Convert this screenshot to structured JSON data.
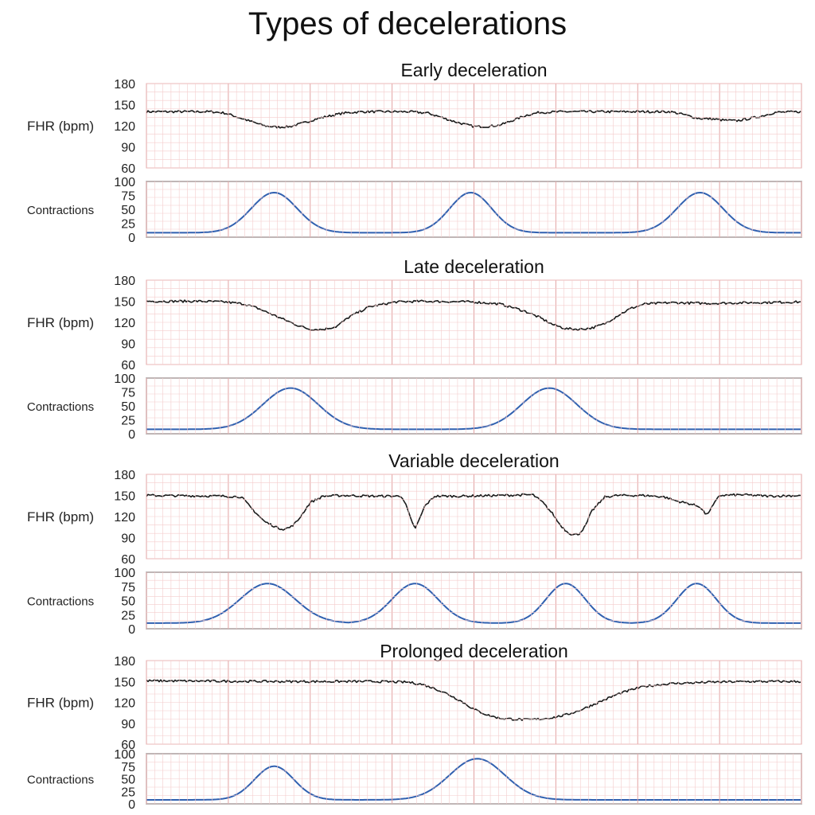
{
  "title": "Types of decelerations",
  "colors": {
    "fhr_line": "#1a1a1a",
    "contraction_line": "#3060b0",
    "grid_minor": "#f4cccc",
    "grid_major": "#e2a3a3",
    "frame": "#555555"
  },
  "chart_data": [
    {
      "type": "line",
      "title": "Early deceleration",
      "fhr": {
        "ylabel": "FHR (bpm)",
        "ticks": [
          180,
          150,
          120,
          90,
          60
        ],
        "ylim": [
          60,
          180
        ],
        "x": [
          0,
          10,
          12,
          14,
          16,
          18,
          20,
          22,
          24,
          26,
          28,
          30,
          33,
          36,
          40,
          43,
          45,
          47,
          49,
          50,
          52,
          54,
          56,
          58,
          60,
          64,
          70,
          75,
          80,
          82,
          84,
          85,
          86,
          88,
          90,
          92,
          94,
          96,
          100
        ],
        "y": [
          140,
          140,
          138,
          132,
          126,
          120,
          118,
          119,
          124,
          130,
          134,
          138,
          140,
          140,
          140,
          138,
          132,
          126,
          121,
          119,
          119,
          121,
          128,
          135,
          139,
          140,
          140,
          140,
          140,
          136,
          131,
          130,
          130,
          128,
          127,
          130,
          134,
          139,
          140
        ]
      },
      "contractions": {
        "ylabel": "Contractions",
        "ticks": [
          100,
          75,
          50,
          25,
          0
        ],
        "ylim": [
          0,
          100
        ],
        "peaks": [
          [
            19.5,
            80,
            3.5
          ],
          [
            49.5,
            80,
            3.2
          ],
          [
            84.5,
            80,
            3.5
          ]
        ],
        "baseline": 8
      }
    },
    {
      "type": "line",
      "title": "Late deceleration",
      "fhr": {
        "ylabel": "FHR (bpm)",
        "ticks": [
          180,
          150,
          120,
          90,
          60
        ],
        "ylim": [
          60,
          180
        ],
        "x": [
          0,
          8,
          12,
          15,
          17,
          19,
          21,
          23,
          25,
          27,
          29,
          31,
          34,
          38,
          42,
          50,
          54,
          56,
          58,
          60,
          62,
          64,
          66,
          68,
          70,
          72,
          74,
          76,
          80,
          86,
          92,
          100
        ],
        "y": [
          150,
          150,
          149,
          146,
          140,
          132,
          124,
          116,
          110,
          110,
          114,
          128,
          142,
          149,
          150,
          149,
          146,
          141,
          135,
          127,
          117,
          111,
          110,
          112,
          118,
          130,
          140,
          146,
          148,
          147,
          148,
          149
        ]
      },
      "contractions": {
        "ylabel": "Contractions",
        "ticks": [
          100,
          75,
          50,
          25,
          0
        ],
        "ylim": [
          0,
          100
        ],
        "peaks": [
          [
            22,
            82,
            4.2
          ],
          [
            61.5,
            82,
            4.2
          ]
        ],
        "baseline": 8
      }
    },
    {
      "type": "line",
      "title": "Variable deceleration",
      "fhr": {
        "ylabel": "FHR (bpm)",
        "ticks": [
          180,
          150,
          120,
          90,
          60
        ],
        "ylim": [
          60,
          180
        ],
        "x": [
          0,
          12,
          14.5,
          16,
          18,
          20,
          21,
          22,
          23,
          25,
          27,
          30,
          35,
          39,
          39.8,
          40.5,
          41,
          41.5,
          42.5,
          44,
          48,
          54,
          59,
          60.5,
          62,
          63,
          64,
          65,
          66,
          67,
          68,
          70,
          72,
          76,
          79,
          81,
          83,
          84.5,
          85.5,
          86.3,
          87.5,
          91,
          95,
          100
        ],
        "y": [
          150,
          149,
          148,
          132,
          113,
          104,
          102,
          105,
          113,
          140,
          149,
          150,
          149,
          149,
          132,
          112,
          103,
          112,
          135,
          149,
          149,
          150,
          151,
          140,
          124,
          110,
          100,
          94,
          95,
          106,
          128,
          148,
          150,
          150,
          148,
          142,
          138,
          134,
          122,
          133,
          150,
          151,
          149,
          150
        ]
      },
      "contractions": {
        "ylabel": "Contractions",
        "ticks": [
          100,
          75,
          50,
          25,
          0
        ],
        "ylim": [
          0,
          100
        ],
        "peaks": [
          [
            18.5,
            80,
            4.2
          ],
          [
            41,
            80,
            3.5
          ],
          [
            64,
            80,
            3.0
          ],
          [
            84,
            80,
            3.0
          ]
        ],
        "baseline": 10
      }
    },
    {
      "type": "line",
      "title": "Prolonged deceleration",
      "fhr": {
        "ylabel": "FHR (bpm)",
        "ticks": [
          180,
          150,
          120,
          90,
          60
        ],
        "ylim": [
          60,
          180
        ],
        "x": [
          0,
          20,
          35,
          40,
          42,
          44,
          46,
          48,
          50,
          52,
          54,
          56,
          58,
          60,
          62,
          64,
          66,
          68,
          70,
          72,
          74,
          76,
          80,
          86,
          92,
          100
        ],
        "y": [
          151,
          150,
          150,
          149,
          146,
          140,
          132,
          122,
          110,
          102,
          97,
          96,
          95,
          96,
          98,
          102,
          108,
          116,
          124,
          132,
          138,
          143,
          147,
          149,
          150,
          150
        ]
      },
      "contractions": {
        "ylabel": "Contractions",
        "ticks": [
          100,
          75,
          50,
          25,
          0
        ],
        "ylim": [
          0,
          100
        ],
        "peaks": [
          [
            19.5,
            75,
            3.0
          ],
          [
            50.5,
            90,
            4.2
          ]
        ],
        "baseline": 8
      }
    }
  ]
}
